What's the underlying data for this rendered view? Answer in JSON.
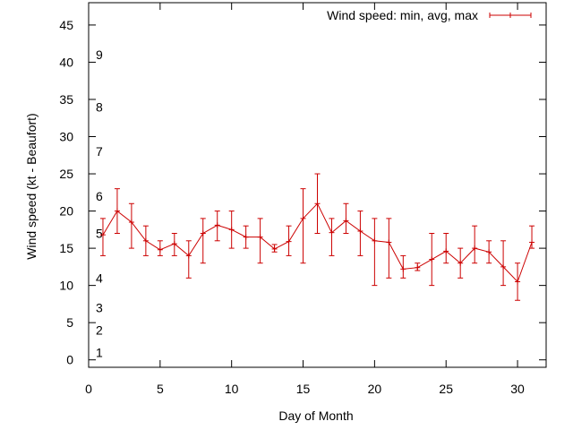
{
  "chart_data": {
    "type": "line",
    "xlabel": "Day of Month",
    "ylabel": "Wind speed (kt - Beaufort)",
    "xlim": [
      0,
      32
    ],
    "ylim": [
      -1,
      48
    ],
    "xticks": [
      0,
      5,
      10,
      15,
      20,
      25,
      30
    ],
    "yticks": [
      0,
      5,
      10,
      15,
      20,
      25,
      30,
      35,
      40,
      45
    ],
    "grid": false,
    "legend_position": "top-right",
    "colors": {
      "series": "#cc0000",
      "axis": "#000000"
    },
    "beaufort_markers": [
      {
        "label": "1",
        "y": 1
      },
      {
        "label": "2",
        "y": 4
      },
      {
        "label": "3",
        "y": 7
      },
      {
        "label": "4",
        "y": 11
      },
      {
        "label": "5",
        "y": 17
      },
      {
        "label": "6",
        "y": 22
      },
      {
        "label": "7",
        "y": 28
      },
      {
        "label": "8",
        "y": 34
      },
      {
        "label": "9",
        "y": 41
      }
    ],
    "series": [
      {
        "name": "Wind speed: min, avg, max",
        "points": [
          {
            "x": 1,
            "avg": 16.8,
            "min": 14,
            "max": 19
          },
          {
            "x": 2,
            "avg": 20,
            "min": 17,
            "max": 23
          },
          {
            "x": 3,
            "avg": 18.5,
            "min": 15,
            "max": 21
          },
          {
            "x": 4,
            "avg": 16,
            "min": 14,
            "max": 18
          },
          {
            "x": 5,
            "avg": 14.8,
            "min": 14,
            "max": 16
          },
          {
            "x": 6,
            "avg": 15.6,
            "min": 14,
            "max": 17
          },
          {
            "x": 7,
            "avg": 14,
            "min": 11,
            "max": 16
          },
          {
            "x": 8,
            "avg": 17,
            "min": 13,
            "max": 19
          },
          {
            "x": 9,
            "avg": 18.1,
            "min": 16,
            "max": 20
          },
          {
            "x": 10,
            "avg": 17.5,
            "min": 15,
            "max": 20
          },
          {
            "x": 11,
            "avg": 16.5,
            "min": 15,
            "max": 18
          },
          {
            "x": 12,
            "avg": 16.5,
            "min": 13,
            "max": 19
          },
          {
            "x": 13,
            "avg": 14.9,
            "min": 14.5,
            "max": 15.5
          },
          {
            "x": 14,
            "avg": 15.9,
            "min": 14,
            "max": 18
          },
          {
            "x": 15,
            "avg": 19,
            "min": 13,
            "max": 23
          },
          {
            "x": 16,
            "avg": 21,
            "min": 17,
            "max": 25
          },
          {
            "x": 17,
            "avg": 17.1,
            "min": 14,
            "max": 19
          },
          {
            "x": 18,
            "avg": 18.7,
            "min": 17,
            "max": 21
          },
          {
            "x": 19,
            "avg": 17.3,
            "min": 14,
            "max": 20
          },
          {
            "x": 20,
            "avg": 16,
            "min": 10,
            "max": 19
          },
          {
            "x": 21,
            "avg": 15.8,
            "min": 11,
            "max": 19
          },
          {
            "x": 22,
            "avg": 12.2,
            "min": 11,
            "max": 14
          },
          {
            "x": 23,
            "avg": 12.4,
            "min": 12,
            "max": 13
          },
          {
            "x": 24,
            "avg": 13.5,
            "min": 10,
            "max": 17
          },
          {
            "x": 25,
            "avg": 14.6,
            "min": 13,
            "max": 17
          },
          {
            "x": 26,
            "avg": 13,
            "min": 11,
            "max": 15
          },
          {
            "x": 27,
            "avg": 15,
            "min": 13,
            "max": 18
          },
          {
            "x": 28,
            "avg": 14.5,
            "min": 13,
            "max": 16
          },
          {
            "x": 29,
            "avg": 12.5,
            "min": 10,
            "max": 16
          },
          {
            "x": 30,
            "avg": 10.5,
            "min": 8,
            "max": 13
          },
          {
            "x": 31,
            "avg": 15.8,
            "min": 15,
            "max": 18
          }
        ]
      }
    ]
  }
}
